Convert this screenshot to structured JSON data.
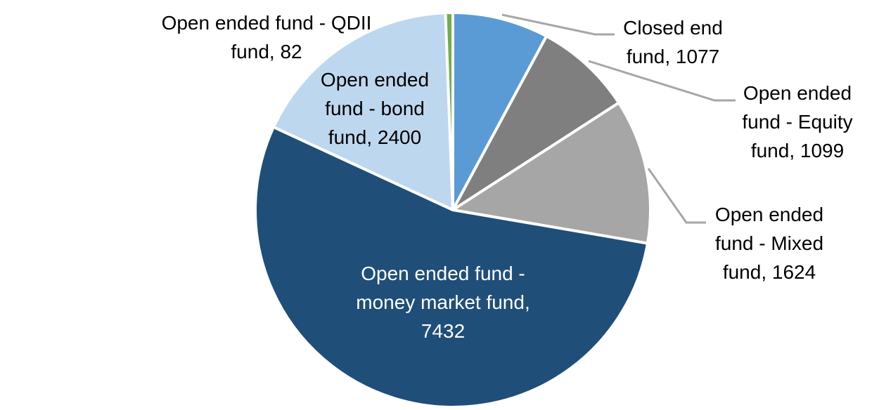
{
  "chart_data": {
    "type": "pie",
    "title": "",
    "legend": "none",
    "label_style": "category-name-and-value-outside-with-leader-lines",
    "start_angle_deg": 0,
    "direction": "clockwise",
    "slice_border_color": "#FFFFFF",
    "leader_line_color": "#A6A6A6",
    "series": [
      {
        "name": "Closed end fund",
        "value": 1077,
        "color": "#5B9BD5",
        "label_text": "Closed end fund, 1077",
        "label_lines": [
          "Closed end",
          "fund, 1077"
        ],
        "label_position": "outside",
        "label_color": "#000000"
      },
      {
        "name": "Open ended fund - Equity fund",
        "value": 1099,
        "color": "#7F7F7F",
        "label_text": "Open ended fund - Equity fund, 1099",
        "label_lines": [
          "Open ended",
          "fund - Equity",
          "fund, 1099"
        ],
        "label_position": "outside",
        "label_color": "#000000"
      },
      {
        "name": "Open ended fund - Mixed fund",
        "value": 1624,
        "color": "#A6A6A6",
        "label_text": "Open ended fund - Mixed fund, 1624",
        "label_lines": [
          "Open ended",
          "fund - Mixed",
          "fund, 1624"
        ],
        "label_position": "outside",
        "label_color": "#000000"
      },
      {
        "name": "Open ended fund - money market fund",
        "value": 7432,
        "color": "#1F4E79",
        "label_text": "Open ended fund - money market fund, 7432",
        "label_lines": [
          "Open ended fund -",
          "money market fund,",
          "7432"
        ],
        "label_position": "inside",
        "label_color": "#FFFFFF"
      },
      {
        "name": "Open ended fund - bond fund",
        "value": 2400,
        "color": "#BDD7EE",
        "label_text": "Open ended fund - bond fund, 2400",
        "label_lines": [
          "Open ended",
          "fund - bond",
          "fund, 2400"
        ],
        "label_position": "outside",
        "label_color": "#000000"
      },
      {
        "name": "Open ended fund - QDII fund",
        "value": 82,
        "color": "#70AD47",
        "label_text": "Open ended fund - QDII fund, 82",
        "label_lines": [
          "Open ended fund - QDII",
          "fund, 82"
        ],
        "label_position": "outside",
        "label_color": "#000000"
      }
    ]
  }
}
